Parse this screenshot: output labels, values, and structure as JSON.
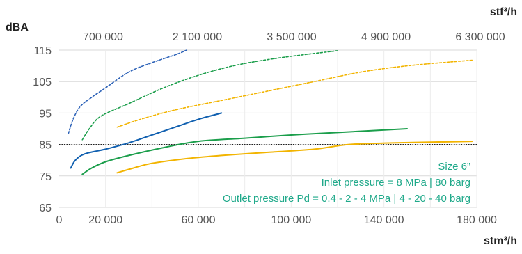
{
  "chart_data": {
    "type": "line",
    "ylabel": "dBA",
    "xlabel": "stm³/h",
    "x2label": "stf³/h",
    "ylim": [
      65,
      115
    ],
    "xlim": [
      0,
      180000
    ],
    "yticks": [
      "115",
      "105",
      "95",
      "85",
      "75",
      "65"
    ],
    "xticks": [
      "0",
      "20 000",
      "60 000",
      "100 000",
      "140 000",
      "180 000"
    ],
    "x2ticks": [
      "700 000",
      "2 100 000",
      "3 500 000",
      "4 900 000",
      "6 300 000"
    ],
    "grid": true,
    "reference_line": {
      "y": 85,
      "style": "dotted",
      "color": "#222222"
    },
    "annotations": [
      "Size 6”",
      "Inlet pressure = 8 MPa | 80 barg",
      "Outlet pressure Pd = 0.4 - 2 - 4 MPa | 4 - 20 - 40 barg"
    ],
    "series": [
      {
        "color": "#2e63b8",
        "dash": true,
        "points": [
          [
            4000,
            88.5
          ],
          [
            6000,
            93
          ],
          [
            9000,
            97
          ],
          [
            14000,
            100
          ],
          [
            20000,
            103
          ],
          [
            30000,
            108
          ],
          [
            40000,
            111
          ],
          [
            50000,
            113.5
          ],
          [
            55000,
            115
          ]
        ]
      },
      {
        "color": "#1b9e4b",
        "dash": true,
        "points": [
          [
            10000,
            86.5
          ],
          [
            13000,
            90
          ],
          [
            18000,
            94
          ],
          [
            30000,
            98
          ],
          [
            45000,
            103
          ],
          [
            60000,
            107
          ],
          [
            75000,
            110
          ],
          [
            90000,
            112
          ],
          [
            105000,
            113.5
          ],
          [
            120000,
            114.8
          ]
        ]
      },
      {
        "color": "#f2b400",
        "dash": true,
        "points": [
          [
            25000,
            90.5
          ],
          [
            35000,
            93
          ],
          [
            50000,
            96
          ],
          [
            70000,
            99
          ],
          [
            90000,
            102
          ],
          [
            110000,
            105
          ],
          [
            130000,
            108
          ],
          [
            150000,
            110
          ],
          [
            178000,
            111.8
          ]
        ]
      },
      {
        "color": "#1160b0",
        "dash": false,
        "points": [
          [
            5000,
            77.5
          ],
          [
            7000,
            80
          ],
          [
            11000,
            82
          ],
          [
            20000,
            83.5
          ],
          [
            30000,
            85.5
          ],
          [
            40000,
            88
          ],
          [
            50000,
            90.5
          ],
          [
            60000,
            93
          ],
          [
            70000,
            95
          ]
        ]
      },
      {
        "color": "#1b9e4b",
        "dash": false,
        "points": [
          [
            10000,
            75.5
          ],
          [
            14000,
            77.5
          ],
          [
            20000,
            79.5
          ],
          [
            30000,
            81.5
          ],
          [
            45000,
            84
          ],
          [
            60000,
            86
          ],
          [
            80000,
            87
          ],
          [
            100000,
            88
          ],
          [
            120000,
            88.8
          ],
          [
            150000,
            90
          ]
        ]
      },
      {
        "color": "#f2b400",
        "dash": false,
        "points": [
          [
            25000,
            76
          ],
          [
            32000,
            77.5
          ],
          [
            40000,
            79
          ],
          [
            55000,
            80.5
          ],
          [
            70000,
            81.5
          ],
          [
            90000,
            82.5
          ],
          [
            110000,
            83.5
          ],
          [
            125000,
            85
          ],
          [
            145000,
            85.5
          ],
          [
            178000,
            86
          ]
        ]
      }
    ]
  }
}
